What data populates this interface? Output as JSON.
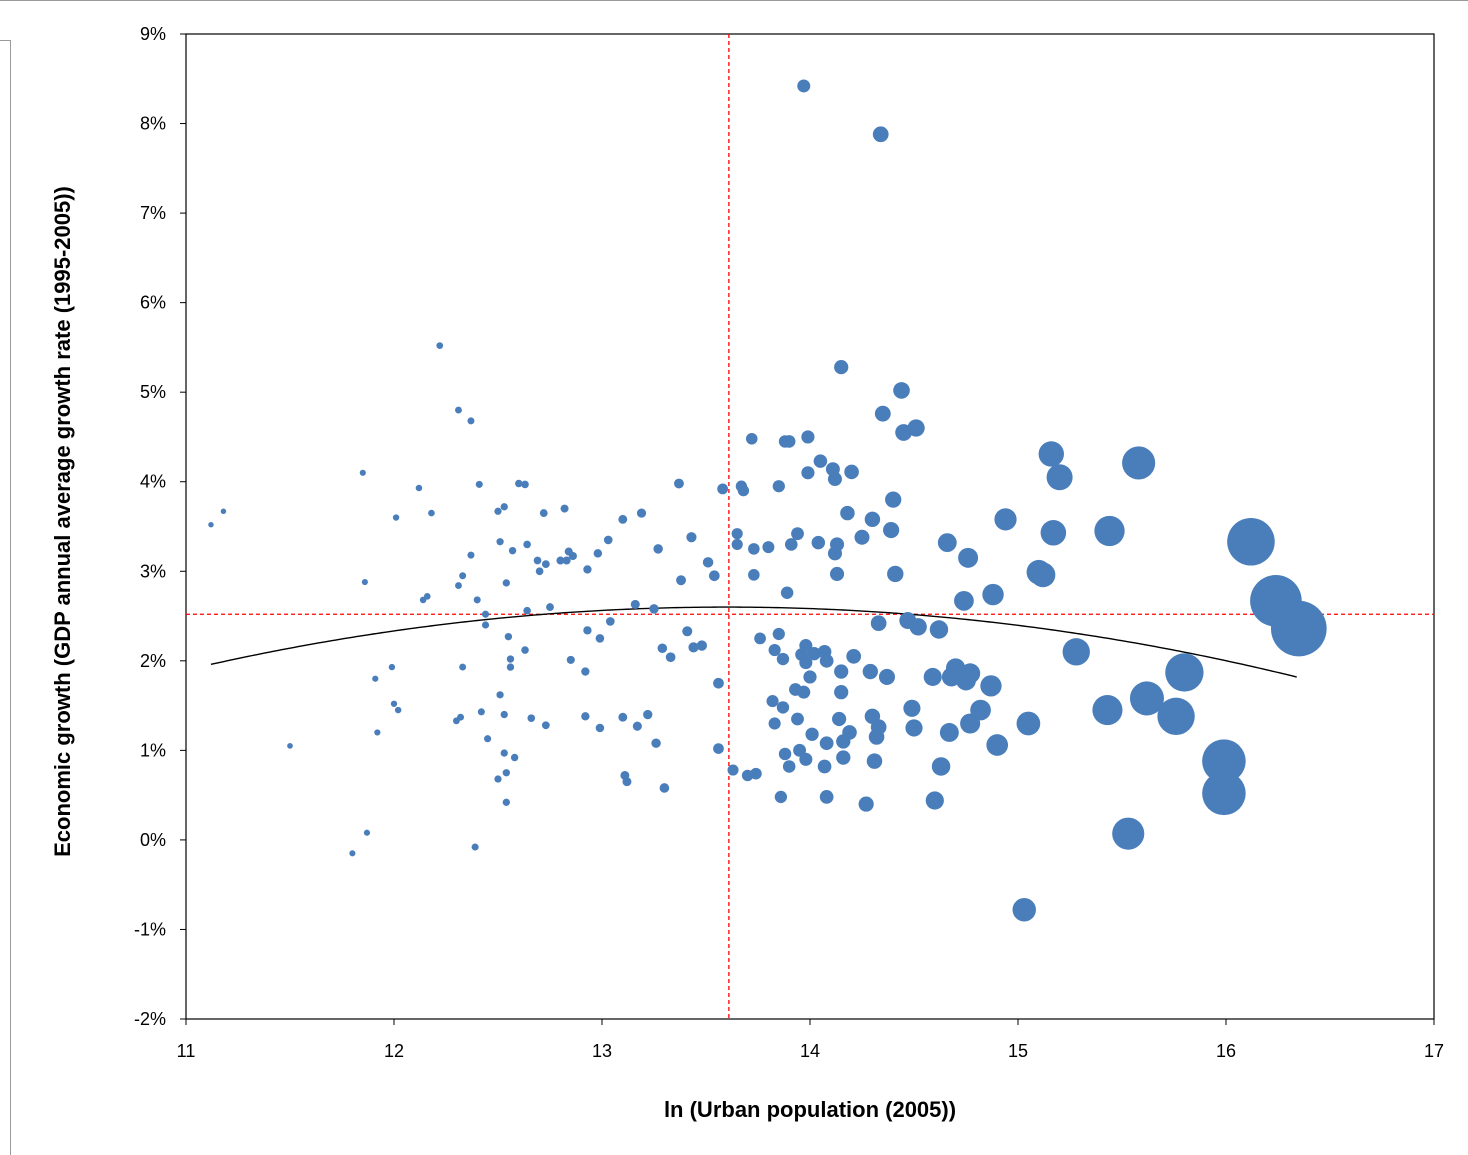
{
  "chart_data": {
    "type": "scatter",
    "title": "",
    "xlabel": "ln (Urban population (2005))",
    "ylabel": "Economic growth (GDP annual average growth rate (1995-2005))",
    "xlim": [
      11,
      17
    ],
    "ylim": [
      -2,
      9
    ],
    "x_ticks": [
      11,
      12,
      13,
      14,
      15,
      16,
      17
    ],
    "y_ticks": [
      -2,
      -1,
      0,
      1,
      2,
      3,
      4,
      5,
      6,
      7,
      8,
      9
    ],
    "y_tick_labels": [
      "-2%",
      "-1%",
      "0%",
      "1%",
      "2%",
      "3%",
      "4%",
      "5%",
      "6%",
      "7%",
      "8%",
      "9%"
    ],
    "grid": false,
    "bubble_note": "bubble area scales with x",
    "colors": {
      "points": "#4a7ebb",
      "fit": "#000000",
      "reference": "#ff0000"
    },
    "reference_lines": {
      "x": 13.61,
      "y": 2.52
    },
    "fit_curve": {
      "type": "quadratic",
      "vertex_x": 13.6,
      "vertex_y": 2.6,
      "y_at_11_1": 1.95,
      "x_range": [
        11.12,
        16.35
      ]
    },
    "points": [
      [
        11.12,
        3.52
      ],
      [
        11.18,
        3.67
      ],
      [
        11.5,
        1.05
      ],
      [
        11.8,
        -0.15
      ],
      [
        11.85,
        4.1
      ],
      [
        11.86,
        2.88
      ],
      [
        11.87,
        0.08
      ],
      [
        11.92,
        1.2
      ],
      [
        11.91,
        1.8
      ],
      [
        11.99,
        1.93
      ],
      [
        12.0,
        1.52
      ],
      [
        12.01,
        3.6
      ],
      [
        12.02,
        1.45
      ],
      [
        12.12,
        3.93
      ],
      [
        12.14,
        2.68
      ],
      [
        12.16,
        2.72
      ],
      [
        12.18,
        3.65
      ],
      [
        12.22,
        5.52
      ],
      [
        12.3,
        1.33
      ],
      [
        12.31,
        4.8
      ],
      [
        12.31,
        2.84
      ],
      [
        12.32,
        1.37
      ],
      [
        12.33,
        2.95
      ],
      [
        12.33,
        1.93
      ],
      [
        12.37,
        4.68
      ],
      [
        12.37,
        3.18
      ],
      [
        12.39,
        -0.08
      ],
      [
        12.4,
        2.68
      ],
      [
        12.41,
        3.97
      ],
      [
        12.42,
        1.43
      ],
      [
        12.44,
        2.52
      ],
      [
        12.44,
        2.4
      ],
      [
        12.45,
        1.13
      ],
      [
        12.5,
        3.67
      ],
      [
        12.5,
        0.68
      ],
      [
        12.51,
        1.62
      ],
      [
        12.51,
        3.33
      ],
      [
        12.53,
        3.72
      ],
      [
        12.53,
        1.4
      ],
      [
        12.53,
        0.97
      ],
      [
        12.54,
        0.75
      ],
      [
        12.54,
        2.87
      ],
      [
        12.54,
        0.42
      ],
      [
        12.55,
        2.27
      ],
      [
        12.56,
        2.02
      ],
      [
        12.56,
        1.93
      ],
      [
        12.57,
        3.23
      ],
      [
        12.58,
        0.92
      ],
      [
        12.6,
        3.98
      ],
      [
        12.63,
        3.97
      ],
      [
        12.63,
        2.12
      ],
      [
        12.64,
        2.56
      ],
      [
        12.64,
        3.3
      ],
      [
        12.66,
        1.36
      ],
      [
        12.69,
        3.12
      ],
      [
        12.7,
        3.0
      ],
      [
        12.72,
        3.65
      ],
      [
        12.73,
        1.28
      ],
      [
        12.73,
        3.08
      ],
      [
        12.75,
        2.6
      ],
      [
        12.8,
        3.12
      ],
      [
        12.82,
        3.7
      ],
      [
        12.83,
        3.12
      ],
      [
        12.84,
        3.22
      ],
      [
        12.85,
        2.01
      ],
      [
        12.86,
        3.17
      ],
      [
        12.92,
        1.88
      ],
      [
        12.92,
        1.38
      ],
      [
        12.93,
        3.02
      ],
      [
        12.93,
        2.34
      ],
      [
        12.98,
        3.2
      ],
      [
        12.99,
        2.25
      ],
      [
        12.99,
        1.25
      ],
      [
        13.03,
        3.35
      ],
      [
        13.04,
        2.44
      ],
      [
        13.1,
        1.37
      ],
      [
        13.1,
        3.58
      ],
      [
        13.11,
        0.72
      ],
      [
        13.12,
        0.65
      ],
      [
        13.16,
        2.63
      ],
      [
        13.17,
        1.27
      ],
      [
        13.19,
        3.65
      ],
      [
        13.22,
        1.4
      ],
      [
        13.25,
        2.58
      ],
      [
        13.26,
        1.08
      ],
      [
        13.27,
        3.25
      ],
      [
        13.29,
        2.14
      ],
      [
        13.3,
        0.58
      ],
      [
        13.33,
        2.04
      ],
      [
        13.37,
        3.98
      ],
      [
        13.38,
        2.9
      ],
      [
        13.41,
        2.33
      ],
      [
        13.43,
        3.38
      ],
      [
        13.44,
        2.15
      ],
      [
        13.48,
        2.17
      ],
      [
        13.51,
        3.1
      ],
      [
        13.54,
        2.95
      ],
      [
        13.56,
        1.75
      ],
      [
        13.56,
        1.02
      ],
      [
        13.58,
        3.92
      ],
      [
        13.63,
        0.78
      ],
      [
        13.65,
        3.42
      ],
      [
        13.65,
        3.3
      ],
      [
        13.67,
        3.95
      ],
      [
        13.68,
        3.9
      ],
      [
        13.7,
        0.72
      ],
      [
        13.72,
        4.48
      ],
      [
        13.73,
        3.25
      ],
      [
        13.73,
        2.96
      ],
      [
        13.74,
        0.74
      ],
      [
        13.76,
        2.25
      ],
      [
        13.8,
        3.27
      ],
      [
        13.82,
        1.55
      ],
      [
        13.83,
        2.12
      ],
      [
        13.83,
        1.3
      ],
      [
        13.85,
        2.3
      ],
      [
        13.85,
        3.95
      ],
      [
        13.86,
        0.48
      ],
      [
        13.87,
        2.02
      ],
      [
        13.87,
        1.48
      ],
      [
        13.88,
        4.45
      ],
      [
        13.88,
        0.96
      ],
      [
        13.89,
        2.76
      ],
      [
        13.9,
        4.45
      ],
      [
        13.9,
        0.82
      ],
      [
        13.91,
        3.3
      ],
      [
        13.93,
        1.68
      ],
      [
        13.94,
        3.42
      ],
      [
        13.94,
        1.35
      ],
      [
        13.95,
        1.0
      ],
      [
        13.96,
        2.07
      ],
      [
        13.97,
        8.42
      ],
      [
        13.97,
        1.65
      ],
      [
        13.98,
        2.17
      ],
      [
        13.98,
        1.98
      ],
      [
        13.98,
        0.9
      ],
      [
        13.99,
        4.5
      ],
      [
        13.99,
        4.1
      ],
      [
        14.0,
        1.82
      ],
      [
        14.01,
        1.18
      ],
      [
        14.02,
        2.08
      ],
      [
        14.04,
        3.32
      ],
      [
        14.05,
        4.23
      ],
      [
        14.07,
        0.82
      ],
      [
        14.07,
        2.1
      ],
      [
        14.08,
        1.08
      ],
      [
        14.08,
        0.48
      ],
      [
        14.08,
        2.0
      ],
      [
        14.11,
        4.14
      ],
      [
        14.12,
        4.03
      ],
      [
        14.12,
        3.2
      ],
      [
        14.13,
        3.3
      ],
      [
        14.13,
        2.97
      ],
      [
        14.14,
        1.35
      ],
      [
        14.15,
        1.65
      ],
      [
        14.15,
        1.88
      ],
      [
        14.15,
        5.28
      ],
      [
        14.16,
        1.1
      ],
      [
        14.16,
        0.92
      ],
      [
        14.18,
        3.65
      ],
      [
        14.19,
        1.2
      ],
      [
        14.2,
        4.11
      ],
      [
        14.21,
        2.05
      ],
      [
        14.25,
        3.38
      ],
      [
        14.27,
        0.4
      ],
      [
        14.29,
        1.88
      ],
      [
        14.3,
        1.38
      ],
      [
        14.3,
        3.58
      ],
      [
        14.31,
        0.88
      ],
      [
        14.32,
        1.15
      ],
      [
        14.33,
        1.26
      ],
      [
        14.33,
        2.42
      ],
      [
        14.34,
        7.88
      ],
      [
        14.35,
        4.76
      ],
      [
        14.37,
        1.82
      ],
      [
        14.39,
        3.46
      ],
      [
        14.4,
        3.8
      ],
      [
        14.41,
        2.97
      ],
      [
        14.44,
        5.02
      ],
      [
        14.45,
        4.55
      ],
      [
        14.47,
        2.45
      ],
      [
        14.49,
        1.47
      ],
      [
        14.5,
        1.25
      ],
      [
        14.51,
        4.6
      ],
      [
        14.52,
        2.38
      ],
      [
        14.59,
        1.82
      ],
      [
        14.6,
        0.44
      ],
      [
        14.62,
        2.35
      ],
      [
        14.63,
        0.82
      ],
      [
        14.66,
        3.32
      ],
      [
        14.67,
        1.2
      ],
      [
        14.68,
        1.82
      ],
      [
        14.7,
        1.92
      ],
      [
        14.74,
        2.67
      ],
      [
        14.75,
        1.78
      ],
      [
        14.76,
        3.15
      ],
      [
        14.77,
        1.86
      ],
      [
        14.77,
        1.3
      ],
      [
        14.82,
        1.45
      ],
      [
        14.87,
        1.72
      ],
      [
        14.88,
        2.74
      ],
      [
        14.9,
        1.06
      ],
      [
        14.94,
        3.58
      ],
      [
        15.03,
        -0.78
      ],
      [
        15.05,
        1.3
      ],
      [
        15.1,
        2.99
      ],
      [
        15.12,
        2.96
      ],
      [
        15.16,
        4.31
      ],
      [
        15.17,
        3.43
      ],
      [
        15.2,
        4.05
      ],
      [
        15.28,
        2.1
      ],
      [
        15.43,
        1.45
      ],
      [
        15.44,
        3.45
      ],
      [
        15.53,
        0.07
      ],
      [
        15.58,
        4.21
      ],
      [
        15.62,
        1.58
      ],
      [
        15.76,
        1.38
      ],
      [
        15.8,
        1.87
      ],
      [
        15.99,
        0.88
      ],
      [
        15.99,
        0.52
      ],
      [
        16.12,
        3.33
      ],
      [
        16.24,
        2.67
      ],
      [
        16.35,
        2.36
      ]
    ]
  }
}
